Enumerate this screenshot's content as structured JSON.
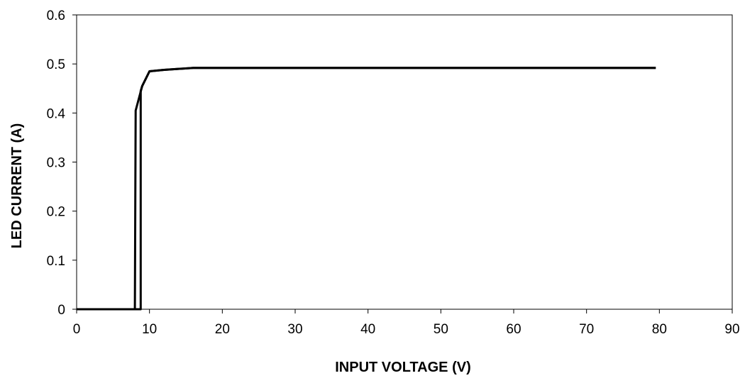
{
  "chart_data": {
    "type": "line",
    "title": "",
    "xlabel": "INPUT VOLTAGE (V)",
    "ylabel": "LED CURRENT (A)",
    "xlim": [
      0,
      90
    ],
    "ylim": [
      0,
      0.6
    ],
    "x_ticks": [
      "0",
      "10",
      "20",
      "30",
      "40",
      "50",
      "60",
      "70",
      "80",
      "90"
    ],
    "y_ticks": [
      "0",
      "0.1",
      "0.2",
      "0.3",
      "0.4",
      "0.5",
      "0.6"
    ],
    "grid": false,
    "legend": "none",
    "series": [
      {
        "direction": "falling",
        "x": [
          79.5,
          70,
          60,
          50,
          40,
          30,
          20,
          16,
          12,
          10,
          9,
          8.1,
          8.0,
          0
        ],
        "y": [
          0.492,
          0.492,
          0.492,
          0.492,
          0.492,
          0.492,
          0.492,
          0.492,
          0.488,
          0.485,
          0.455,
          0.405,
          0,
          0
        ]
      },
      {
        "direction": "rising",
        "x": [
          0,
          8.8,
          8.8,
          9,
          10,
          12,
          16,
          20,
          30,
          40,
          50,
          60,
          70,
          79.5
        ],
        "y": [
          0,
          0,
          0.445,
          0.455,
          0.485,
          0.488,
          0.492,
          0.492,
          0.492,
          0.492,
          0.492,
          0.492,
          0.492,
          0.492
        ]
      }
    ],
    "line_color": "#000000"
  }
}
